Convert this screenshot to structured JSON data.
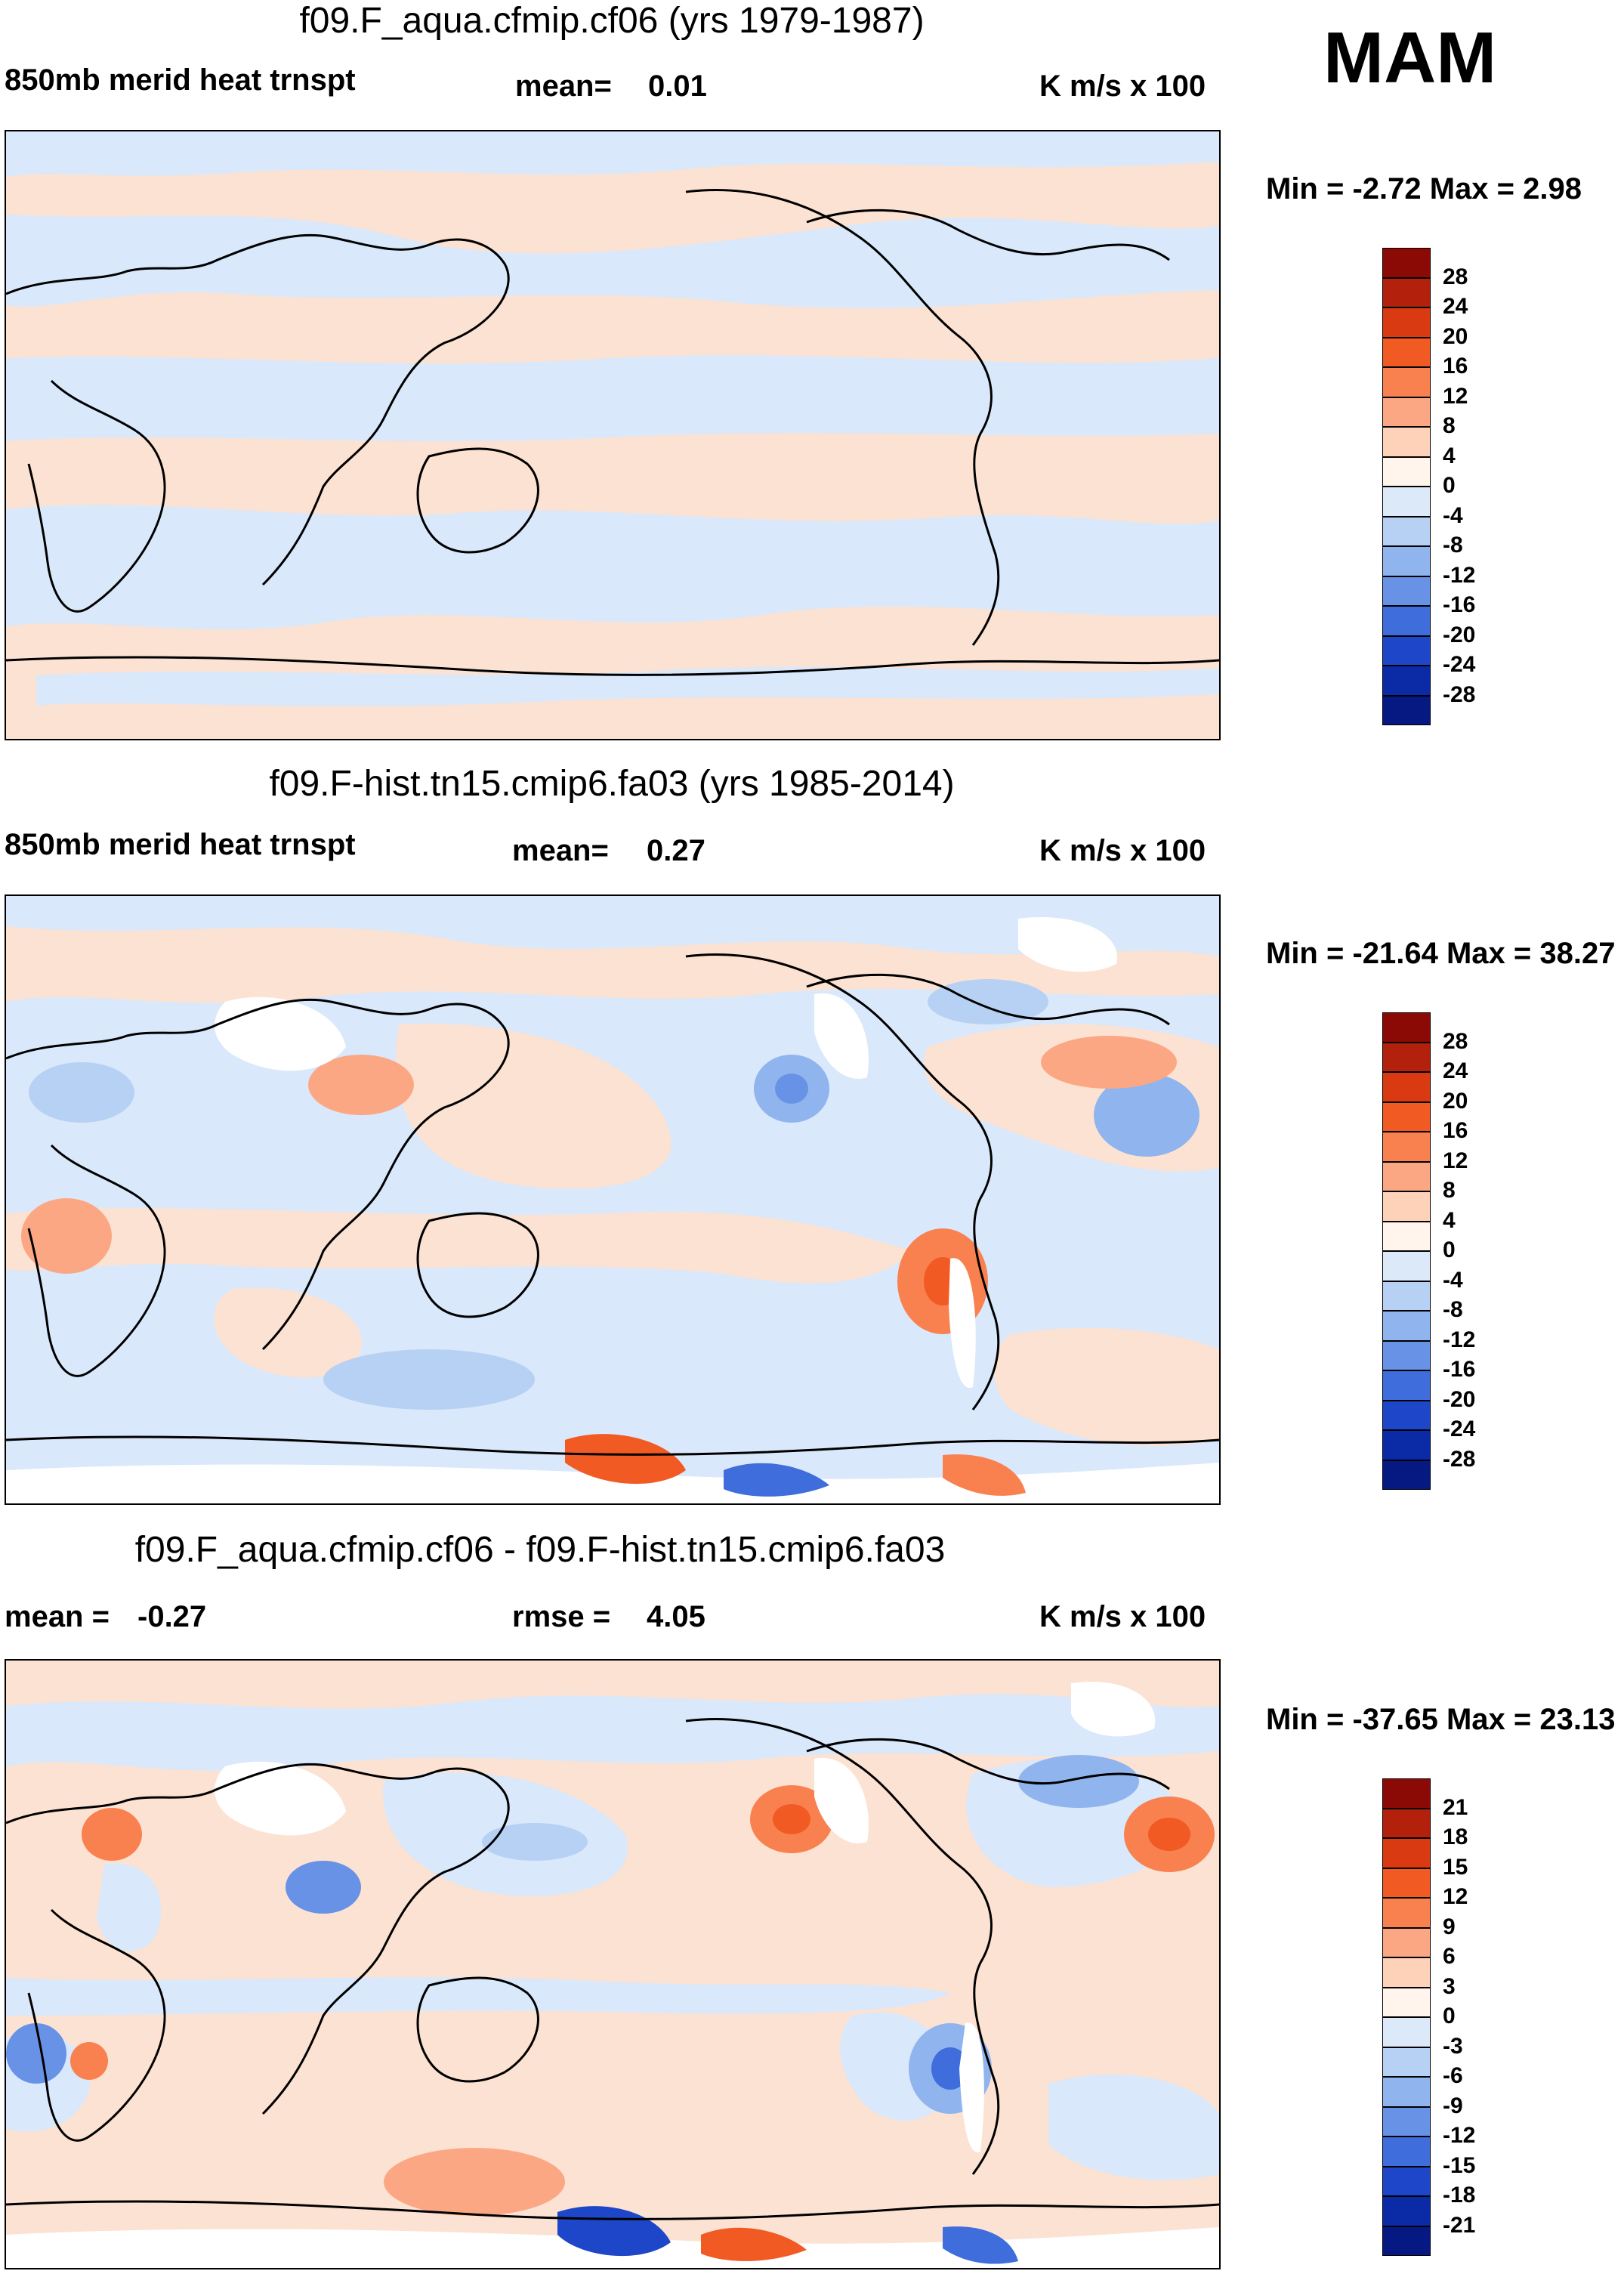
{
  "season": "MAM",
  "panels": [
    {
      "title": "f09.F_aqua.cfmip.cf06 (yrs 1979-1987)",
      "left_label": "850mb merid heat trnspt",
      "stat_label": "mean=",
      "stat_value": "0.01",
      "stat2_label": "",
      "stat2_value": "",
      "units": "K m/s x 100",
      "minmax": "Min =  -2.72 Max =   2.98",
      "colorbar": {
        "ticks": [
          "28",
          "24",
          "20",
          "16",
          "12",
          "8",
          "4",
          "0",
          "-4",
          "-8",
          "-12",
          "-16",
          "-20",
          "-24",
          "-28"
        ],
        "colors": [
          "#8b0a06",
          "#b3200c",
          "#d93a12",
          "#f25a24",
          "#f9804f",
          "#fca784",
          "#fdd2b8",
          "#fff5ec",
          "#dbe9f9",
          "#b7d1f4",
          "#8fb4ee",
          "#6792e6",
          "#3f6ddb",
          "#1e46c8",
          "#0a2aa6",
          "#061882"
        ]
      }
    },
    {
      "title": "f09.F-hist.tn15.cmip6.fa03 (yrs 1985-2014)",
      "left_label": "850mb merid heat trnspt",
      "stat_label": "mean=",
      "stat_value": "0.27",
      "stat2_label": "",
      "stat2_value": "",
      "units": "K m/s x 100",
      "minmax": "Min = -21.64 Max =  38.27",
      "colorbar": {
        "ticks": [
          "28",
          "24",
          "20",
          "16",
          "12",
          "8",
          "4",
          "0",
          "-4",
          "-8",
          "-12",
          "-16",
          "-20",
          "-24",
          "-28"
        ],
        "colors": [
          "#8b0a06",
          "#b3200c",
          "#d93a12",
          "#f25a24",
          "#f9804f",
          "#fca784",
          "#fdd2b8",
          "#fff5ec",
          "#dbe9f9",
          "#b7d1f4",
          "#8fb4ee",
          "#6792e6",
          "#3f6ddb",
          "#1e46c8",
          "#0a2aa6",
          "#061882"
        ]
      }
    },
    {
      "title": "f09.F_aqua.cfmip.cf06 - f09.F-hist.tn15.cmip6.fa03",
      "left_label": "mean =",
      "stat_label": "",
      "stat_value": "-0.27",
      "stat2_label": "rmse =",
      "stat2_value": "4.05",
      "units": "K m/s x 100",
      "minmax": "Min = -37.65 Max =  23.13",
      "colorbar": {
        "ticks": [
          "21",
          "18",
          "15",
          "12",
          "9",
          "6",
          "3",
          "0",
          "-3",
          "-6",
          "-9",
          "-12",
          "-15",
          "-18",
          "-21"
        ],
        "colors": [
          "#8b0a06",
          "#b3200c",
          "#d93a12",
          "#f25a24",
          "#f9804f",
          "#fca784",
          "#fdd2b8",
          "#fff5ec",
          "#dbe9f9",
          "#b7d1f4",
          "#8fb4ee",
          "#6792e6",
          "#3f6ddb",
          "#1e46c8",
          "#0a2aa6",
          "#061882"
        ]
      }
    }
  ],
  "chart_data": [
    {
      "type": "heatmap",
      "title": "f09.F_aqua.cfmip.cf06 (yrs 1979-1987)",
      "variable": "850mb merid heat trnspt",
      "units": "K m/s x 100",
      "mean": 0.01,
      "min": -2.72,
      "max": 2.98,
      "levels": [
        -28,
        -24,
        -20,
        -16,
        -12,
        -8,
        -4,
        0,
        4,
        8,
        12,
        16,
        20,
        24,
        28
      ],
      "projection": "cylindrical equidistant, global, centred on 180"
    },
    {
      "type": "heatmap",
      "title": "f09.F-hist.tn15.cmip6.fa03 (yrs 1985-2014)",
      "variable": "850mb merid heat trnspt",
      "units": "K m/s x 100",
      "mean": 0.27,
      "min": -21.64,
      "max": 38.27,
      "levels": [
        -28,
        -24,
        -20,
        -16,
        -12,
        -8,
        -4,
        0,
        4,
        8,
        12,
        16,
        20,
        24,
        28
      ],
      "projection": "cylindrical equidistant, global, centred on 180"
    },
    {
      "type": "heatmap",
      "title": "f09.F_aqua.cfmip.cf06 - f09.F-hist.tn15.cmip6.fa03",
      "variable": "difference",
      "units": "K m/s x 100",
      "mean": -0.27,
      "rmse": 4.05,
      "min": -37.65,
      "max": 23.13,
      "levels": [
        -21,
        -18,
        -15,
        -12,
        -9,
        -6,
        -3,
        0,
        3,
        6,
        9,
        12,
        15,
        18,
        21
      ],
      "projection": "cylindrical equidistant, global, centred on 180"
    }
  ]
}
